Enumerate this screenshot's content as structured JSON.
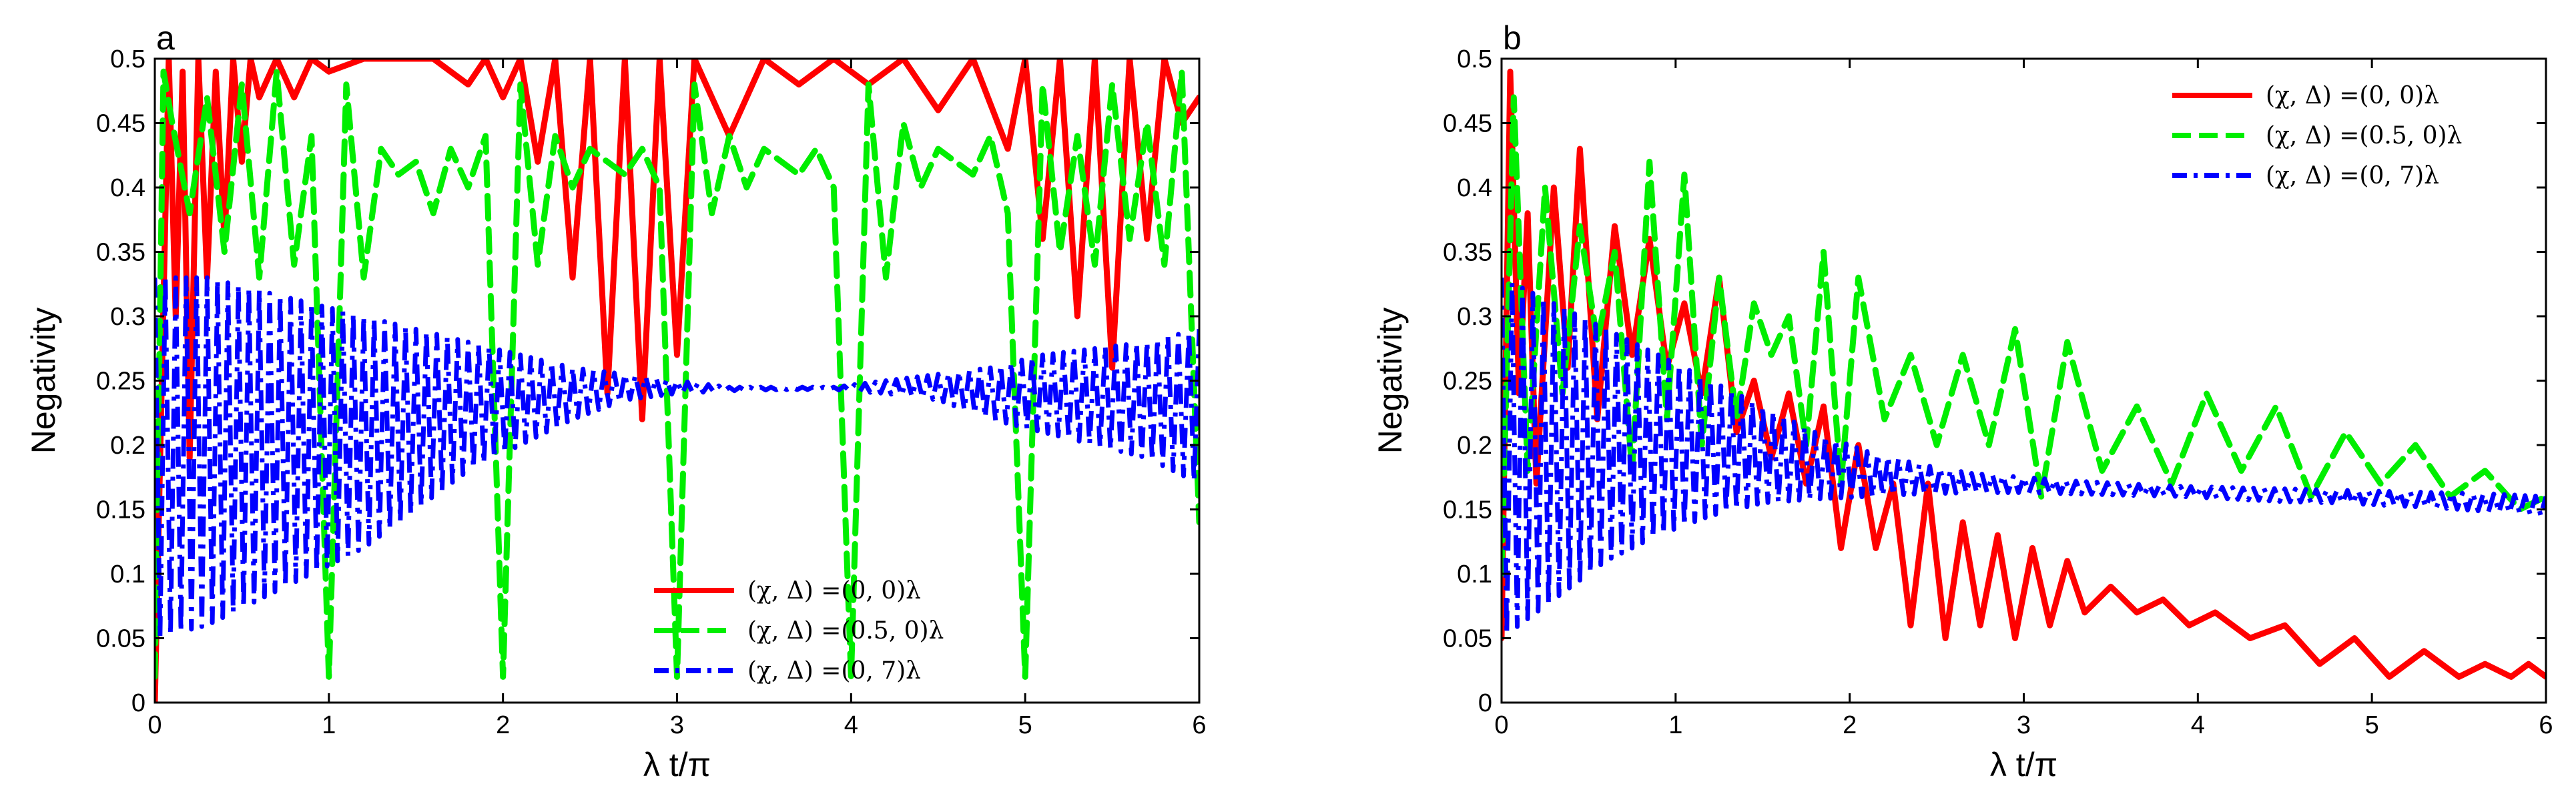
{
  "chart_data": [
    {
      "panel": "a",
      "type": "line",
      "xlabel": "λ t/π",
      "ylabel": "Negativity",
      "xlim": [
        0,
        6
      ],
      "ylim": [
        0,
        0.5
      ],
      "xticks": [
        "0",
        "1",
        "2",
        "3",
        "4",
        "5",
        "6"
      ],
      "yticks": [
        "0",
        "0.05",
        "0.1",
        "0.15",
        "0.2",
        "0.25",
        "0.3",
        "0.35",
        "0.4",
        "0.45",
        "0.5"
      ],
      "grid": false,
      "legend_position": "bottom-center",
      "series": [
        {
          "name": "(χ, Δ) =(0, 0)λ",
          "color": "#ff0000",
          "style": "solid",
          "x": [
            0,
            0.08,
            0.12,
            0.16,
            0.2,
            0.25,
            0.3,
            0.35,
            0.4,
            0.45,
            0.5,
            0.55,
            0.6,
            0.7,
            0.8,
            0.9,
            1.0,
            1.2,
            1.4,
            1.6,
            1.8,
            1.9,
            2.0,
            2.1,
            2.2,
            2.3,
            2.4,
            2.5,
            2.6,
            2.7,
            2.8,
            2.9,
            3.0,
            3.1,
            3.3,
            3.5,
            3.7,
            3.9,
            4.1,
            4.3,
            4.5,
            4.7,
            4.9,
            5.0,
            5.1,
            5.2,
            5.3,
            5.4,
            5.5,
            5.6,
            5.7,
            5.8,
            5.9,
            6.0
          ],
          "y": [
            0,
            0.5,
            0.3,
            0.49,
            0.19,
            0.5,
            0.33,
            0.49,
            0.36,
            0.5,
            0.42,
            0.5,
            0.47,
            0.5,
            0.47,
            0.5,
            0.49,
            0.5,
            0.5,
            0.5,
            0.48,
            0.5,
            0.47,
            0.5,
            0.42,
            0.5,
            0.33,
            0.5,
            0.24,
            0.5,
            0.22,
            0.5,
            0.27,
            0.5,
            0.44,
            0.5,
            0.48,
            0.5,
            0.48,
            0.5,
            0.46,
            0.5,
            0.43,
            0.5,
            0.36,
            0.5,
            0.3,
            0.5,
            0.26,
            0.5,
            0.36,
            0.5,
            0.45,
            0.47
          ]
        },
        {
          "name": "(χ, Δ) =(0.5, 0)λ",
          "color": "#00ee00",
          "style": "dashed",
          "x": [
            0,
            0.05,
            0.1,
            0.2,
            0.3,
            0.4,
            0.5,
            0.6,
            0.7,
            0.8,
            0.9,
            1.0,
            1.1,
            1.2,
            1.3,
            1.4,
            1.5,
            1.6,
            1.7,
            1.8,
            1.9,
            2.0,
            2.1,
            2.2,
            2.3,
            2.4,
            2.5,
            2.6,
            2.7,
            2.8,
            2.9,
            3.0,
            3.1,
            3.2,
            3.3,
            3.4,
            3.5,
            3.6,
            3.7,
            3.8,
            3.9,
            4.0,
            4.1,
            4.2,
            4.3,
            4.4,
            4.5,
            4.6,
            4.7,
            4.8,
            4.9,
            5.0,
            5.1,
            5.2,
            5.3,
            5.4,
            5.5,
            5.6,
            5.7,
            5.8,
            5.9,
            6.0
          ],
          "y": [
            0.02,
            0.49,
            0.45,
            0.38,
            0.47,
            0.35,
            0.48,
            0.33,
            0.49,
            0.34,
            0.44,
            0.02,
            0.48,
            0.33,
            0.43,
            0.41,
            0.42,
            0.38,
            0.43,
            0.4,
            0.44,
            0.02,
            0.48,
            0.34,
            0.44,
            0.4,
            0.43,
            0.42,
            0.41,
            0.43,
            0.4,
            0.02,
            0.48,
            0.38,
            0.44,
            0.4,
            0.43,
            0.42,
            0.41,
            0.43,
            0.4,
            0.02,
            0.48,
            0.33,
            0.45,
            0.4,
            0.43,
            0.42,
            0.41,
            0.44,
            0.38,
            0.02,
            0.48,
            0.35,
            0.44,
            0.34,
            0.48,
            0.36,
            0.45,
            0.34,
            0.49,
            0.14
          ]
        },
        {
          "name": "(χ, Δ) =(0, 7)λ",
          "color": "#0000ff",
          "style": "dashdot",
          "x": [
            0,
            0.3,
            0.6,
            0.9,
            1.2,
            1.5,
            1.8,
            2.1,
            2.4,
            2.7,
            3.0,
            3.3,
            3.6,
            3.9,
            4.2,
            4.5,
            4.8,
            5.1,
            5.4,
            5.7,
            6.0
          ],
          "y_upper": [
            0.33,
            0.33,
            0.32,
            0.31,
            0.3,
            0.29,
            0.28,
            0.27,
            0.26,
            0.255,
            0.25,
            0.245,
            0.245,
            0.245,
            0.25,
            0.255,
            0.26,
            0.27,
            0.275,
            0.28,
            0.29
          ],
          "y_lower": [
            0.05,
            0.06,
            0.08,
            0.1,
            0.12,
            0.15,
            0.18,
            0.2,
            0.22,
            0.235,
            0.24,
            0.242,
            0.243,
            0.243,
            0.24,
            0.235,
            0.22,
            0.21,
            0.2,
            0.19,
            0.17
          ]
        }
      ]
    },
    {
      "panel": "b",
      "type": "line",
      "xlabel": "λ t/π",
      "ylabel": "Negativity",
      "xlim": [
        0,
        6
      ],
      "ylim": [
        0,
        0.5
      ],
      "xticks": [
        "0",
        "1",
        "2",
        "3",
        "4",
        "5",
        "6"
      ],
      "yticks": [
        "0",
        "0.05",
        "0.1",
        "0.15",
        "0.2",
        "0.25",
        "0.3",
        "0.35",
        "0.4",
        "0.45",
        "0.5"
      ],
      "grid": false,
      "legend_position": "top-right",
      "series": [
        {
          "name": "(χ, Δ) =(0, 0)λ",
          "color": "#ff0000",
          "style": "solid",
          "x": [
            0,
            0.05,
            0.1,
            0.15,
            0.2,
            0.3,
            0.38,
            0.45,
            0.55,
            0.65,
            0.75,
            0.85,
            0.95,
            1.05,
            1.15,
            1.25,
            1.35,
            1.45,
            1.55,
            1.65,
            1.75,
            1.85,
            1.95,
            2.05,
            2.15,
            2.25,
            2.35,
            2.45,
            2.55,
            2.65,
            2.75,
            2.85,
            2.95,
            3.05,
            3.15,
            3.25,
            3.35,
            3.5,
            3.65,
            3.8,
            3.95,
            4.1,
            4.3,
            4.5,
            4.7,
            4.9,
            5.1,
            5.3,
            5.5,
            5.65,
            5.8,
            5.9,
            6.0
          ],
          "y": [
            0.05,
            0.49,
            0.24,
            0.38,
            0.17,
            0.4,
            0.26,
            0.43,
            0.22,
            0.37,
            0.27,
            0.36,
            0.26,
            0.31,
            0.24,
            0.33,
            0.21,
            0.25,
            0.19,
            0.24,
            0.17,
            0.23,
            0.12,
            0.2,
            0.12,
            0.17,
            0.06,
            0.17,
            0.05,
            0.14,
            0.06,
            0.13,
            0.05,
            0.12,
            0.06,
            0.11,
            0.07,
            0.09,
            0.07,
            0.08,
            0.06,
            0.07,
            0.05,
            0.06,
            0.03,
            0.05,
            0.02,
            0.04,
            0.02,
            0.03,
            0.02,
            0.03,
            0.02
          ]
        },
        {
          "name": "(χ, Δ) =(0.5, 0)λ",
          "color": "#00ee00",
          "style": "dashed",
          "x": [
            0,
            0.07,
            0.15,
            0.25,
            0.35,
            0.45,
            0.55,
            0.65,
            0.75,
            0.85,
            0.95,
            1.05,
            1.15,
            1.25,
            1.35,
            1.45,
            1.55,
            1.65,
            1.75,
            1.85,
            1.95,
            2.05,
            2.2,
            2.35,
            2.5,
            2.65,
            2.8,
            2.95,
            3.1,
            3.25,
            3.45,
            3.65,
            3.85,
            4.05,
            4.25,
            4.45,
            4.65,
            4.85,
            5.05,
            5.25,
            5.45,
            5.65,
            5.85,
            6.0
          ],
          "y": [
            0.1,
            0.47,
            0.18,
            0.4,
            0.24,
            0.37,
            0.28,
            0.35,
            0.18,
            0.42,
            0.22,
            0.41,
            0.2,
            0.33,
            0.22,
            0.31,
            0.27,
            0.3,
            0.2,
            0.35,
            0.17,
            0.33,
            0.22,
            0.27,
            0.2,
            0.27,
            0.2,
            0.29,
            0.16,
            0.28,
            0.18,
            0.23,
            0.17,
            0.24,
            0.18,
            0.23,
            0.16,
            0.21,
            0.17,
            0.2,
            0.16,
            0.18,
            0.15,
            0.16
          ]
        },
        {
          "name": "(χ, Δ) =(0, 7)λ",
          "color": "#0000ff",
          "style": "dashdot",
          "x": [
            0,
            0.3,
            0.6,
            0.9,
            1.2,
            1.5,
            1.8,
            2.1,
            2.4,
            2.7,
            3.0,
            3.3,
            3.6,
            3.9,
            4.2,
            4.5,
            4.8,
            5.1,
            5.4,
            5.7,
            6.0
          ],
          "y_upper": [
            0.33,
            0.31,
            0.29,
            0.27,
            0.25,
            0.23,
            0.21,
            0.195,
            0.185,
            0.178,
            0.175,
            0.172,
            0.17,
            0.168,
            0.167,
            0.166,
            0.165,
            0.164,
            0.163,
            0.162,
            0.16
          ],
          "y_lower": [
            0.05,
            0.08,
            0.11,
            0.13,
            0.145,
            0.155,
            0.158,
            0.16,
            0.162,
            0.163,
            0.163,
            0.162,
            0.161,
            0.16,
            0.158,
            0.156,
            0.155,
            0.153,
            0.151,
            0.148,
            0.145
          ]
        }
      ]
    }
  ]
}
